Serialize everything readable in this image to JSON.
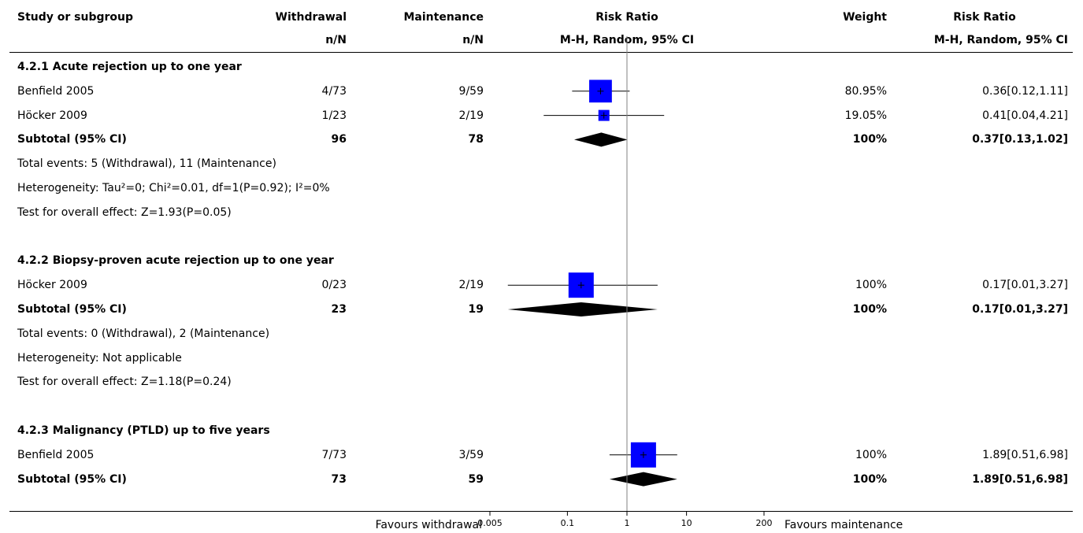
{
  "headers": {
    "study": "Study or subgroup",
    "group1": "Withdrawal",
    "group1_sub": "n/N",
    "group2": "Maintenance",
    "group2_sub": "n/N",
    "plot": "Risk Ratio",
    "plot_sub": "M-H, Random, 95% CI",
    "weight": "Weight",
    "effect": "Risk Ratio",
    "effect_sub": "M-H, Random, 95% CI"
  },
  "footer": {
    "favours_left": "Favours withdrawal",
    "favours_right": "Favours maintenance"
  },
  "colors": {
    "study_marker": "#0000ff",
    "diamond": "#000000",
    "line": "#000000",
    "null_line": "#808080"
  },
  "chart_data": {
    "type": "forest",
    "x_scale": "log",
    "xlim": [
      0.005,
      200
    ],
    "ticks": [
      "0.005",
      "0.1",
      "1",
      "10",
      "200"
    ],
    "null_value": 1,
    "groups": [
      {
        "title": "4.2.1 Acute rejection up to one year",
        "studies": [
          {
            "name": "Benfield 2005",
            "g1": "4/73",
            "g2": "9/59",
            "weight": "80.95%",
            "weight_value": 80.95,
            "ci_text": "0.36[0.12,1.11]",
            "rr": 0.36,
            "lo": 0.12,
            "hi": 1.11
          },
          {
            "name": "Höcker 2009",
            "g1": "1/23",
            "g2": "2/19",
            "weight": "19.05%",
            "weight_value": 19.05,
            "ci_text": "0.41[0.04,4.21]",
            "rr": 0.41,
            "lo": 0.04,
            "hi": 4.21
          }
        ],
        "subtotal": {
          "label": "Subtotal (95% CI)",
          "g1": "96",
          "g2": "78",
          "weight": "100%",
          "ci_text": "0.37[0.13,1.02]",
          "rr": 0.37,
          "lo": 0.13,
          "hi": 1.02
        },
        "notes": [
          "Total events: 5 (Withdrawal), 11 (Maintenance)",
          "Heterogeneity: Tau²=0; Chi²=0.01, df=1(P=0.92); I²=0%",
          "Test for overall effect: Z=1.93(P=0.05)"
        ]
      },
      {
        "title": "4.2.2 Biopsy-proven acute rejection up to one year",
        "studies": [
          {
            "name": "Höcker 2009",
            "g1": "0/23",
            "g2": "2/19",
            "weight": "100%",
            "weight_value": 100,
            "ci_text": "0.17[0.01,3.27]",
            "rr": 0.17,
            "lo": 0.01,
            "hi": 3.27
          }
        ],
        "subtotal": {
          "label": "Subtotal (95% CI)",
          "g1": "23",
          "g2": "19",
          "weight": "100%",
          "ci_text": "0.17[0.01,3.27]",
          "rr": 0.17,
          "lo": 0.01,
          "hi": 3.27
        },
        "notes": [
          "Total events: 0 (Withdrawal), 2 (Maintenance)",
          "Heterogeneity: Not applicable",
          "Test for overall effect: Z=1.18(P=0.24)"
        ]
      },
      {
        "title": "4.2.3 Malignancy (PTLD) up to five years",
        "studies": [
          {
            "name": "Benfield 2005",
            "g1": "7/73",
            "g2": "3/59",
            "weight": "100%",
            "weight_value": 100,
            "ci_text": "1.89[0.51,6.98]",
            "rr": 1.89,
            "lo": 0.51,
            "hi": 6.98
          }
        ],
        "subtotal": {
          "label": "Subtotal (95% CI)",
          "g1": "73",
          "g2": "59",
          "weight": "100%",
          "ci_text": "1.89[0.51,6.98]",
          "rr": 1.89,
          "lo": 0.51,
          "hi": 6.98
        },
        "notes": []
      }
    ]
  }
}
